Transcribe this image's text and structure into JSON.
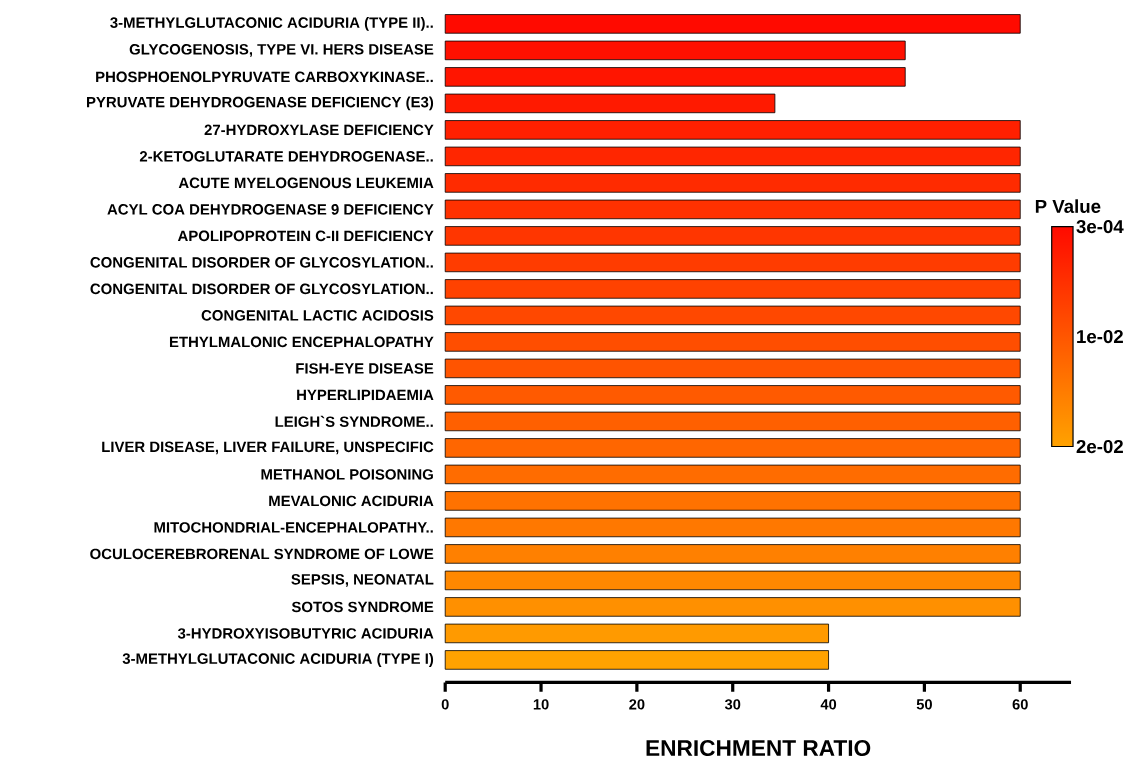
{
  "chart_data": {
    "type": "bar",
    "orientation": "horizontal",
    "categories": [
      "3-METHYLGLUTACONIC ACIDURIA (TYPE II)..",
      "GLYCOGENOSIS, TYPE VI. HERS DISEASE",
      "PHOSPHOENOLPYRUVATE CARBOXYKINASE..",
      "PYRUVATE DEHYDROGENASE DEFICIENCY (E3)",
      "27-HYDROXYLASE DEFICIENCY",
      "2-KETOGLUTARATE DEHYDROGENASE..",
      "ACUTE MYELOGENOUS LEUKEMIA",
      "ACYL COA DEHYDROGENASE 9 DEFICIENCY",
      "APOLIPOPROTEIN C-II DEFICIENCY",
      "CONGENITAL DISORDER OF GLYCOSYLATION..",
      "CONGENITAL DISORDER OF GLYCOSYLATION..",
      "CONGENITAL LACTIC ACIDOSIS",
      "ETHYLMALONIC ENCEPHALOPATHY",
      "FISH-EYE DISEASE",
      "HYPERLIPIDAEMIA",
      "LEIGH`S SYNDROME..",
      "LIVER DISEASE, LIVER FAILURE, UNSPECIFIC",
      "METHANOL POISONING",
      "MEVALONIC ACIDURIA",
      "MITOCHONDRIAL-ENCEPHALOPATHY..",
      "OCULOCEREBRORENAL SYNDROME OF LOWE",
      "SEPSIS, NEONATAL",
      "SOTOS SYNDROME",
      "3-HYDROXYISOBUTYRIC ACIDURIA",
      "3-METHYLGLUTACONIC ACIDURIA (TYPE I)"
    ],
    "values": [
      60,
      48,
      48,
      34.4,
      60,
      60,
      60,
      60,
      60,
      60,
      60,
      60,
      60,
      60,
      60,
      60,
      60,
      60,
      60,
      60,
      60,
      60,
      60,
      40,
      40
    ],
    "colors": [
      "#ff0a00",
      "#ff1000",
      "#ff1500",
      "#ff1a00",
      "#ff2000",
      "#ff2600",
      "#ff2b00",
      "#ff3100",
      "#ff3600",
      "#ff3c00",
      "#ff4200",
      "#ff4800",
      "#ff4e00",
      "#ff5400",
      "#ff5a00",
      "#ff6000",
      "#ff6600",
      "#ff6c00",
      "#ff7200",
      "#ff7800",
      "#ff8000",
      "#ff8800",
      "#ff9000",
      "#ff9a00",
      "#ffa200"
    ],
    "xlabel": "ENRICHMENT RATIO",
    "xlim": [
      0,
      65.3
    ],
    "xticks": [
      0,
      10,
      20,
      30,
      40,
      50,
      60
    ],
    "clabel": "P Value",
    "annotations": [
      "3e-04",
      "1e-02",
      "2e-02"
    ]
  }
}
